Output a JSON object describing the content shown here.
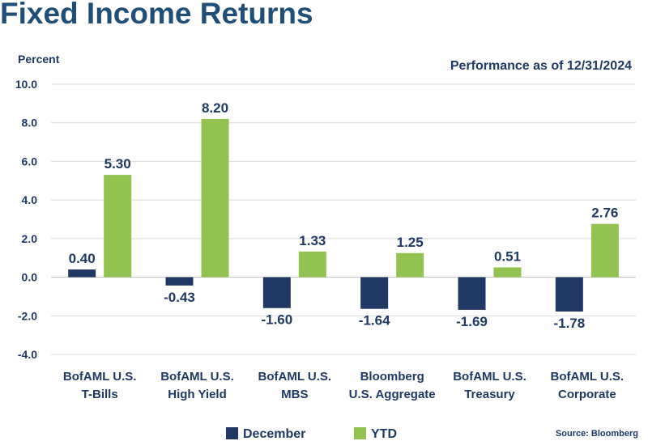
{
  "header": {
    "title": "Fixed Income Returns"
  },
  "chart_data": {
    "type": "bar",
    "title": "Fixed Income Returns",
    "subtitle": "Performance as of 12/31/2024",
    "ylabel": "Percent",
    "ylim": [
      -4.0,
      10.0
    ],
    "yticks": [
      "10.0",
      "8.0",
      "6.0",
      "4.0",
      "2.0",
      "0.0",
      "-2.0",
      "-4.0"
    ],
    "ytick_values": [
      10,
      8,
      6,
      4,
      2,
      0,
      -2,
      -4
    ],
    "grid": true,
    "legend_position": "bottom",
    "categories": [
      [
        "BofAML U.S.",
        "T-Bills"
      ],
      [
        "BofAML U.S.",
        "High Yield"
      ],
      [
        "BofAML U.S.",
        "MBS"
      ],
      [
        "Bloomberg",
        "U.S. Aggregate"
      ],
      [
        "BofAML U.S.",
        "Treasury"
      ],
      [
        "BofAML U.S.",
        "Corporate"
      ]
    ],
    "series": [
      {
        "name": "December",
        "color": "#1f3864",
        "values": [
          0.4,
          -0.43,
          -1.6,
          -1.64,
          -1.69,
          -1.78
        ],
        "labels": [
          "0.40",
          "-0.43",
          "-1.60",
          "-1.64",
          "-1.69",
          "-1.78"
        ]
      },
      {
        "name": "YTD",
        "color": "#92c350",
        "values": [
          5.3,
          8.2,
          1.33,
          1.25,
          0.51,
          2.76
        ],
        "labels": [
          "5.30",
          "8.20",
          "1.33",
          "1.25",
          "0.51",
          "2.76"
        ]
      }
    ],
    "source": "Source: Bloomberg"
  }
}
